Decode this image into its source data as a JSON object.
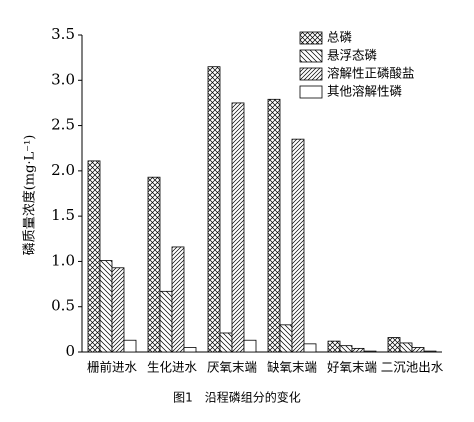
{
  "chart_data": {
    "type": "bar",
    "caption": "图1　沿程磷组分的变化",
    "y_label": "磷质量浓度(mg·L⁻¹)",
    "categories": [
      "栅前进水",
      "生化进水",
      "厌氧末端",
      "缺氧末端",
      "好氧末端",
      "二沉池出水"
    ],
    "series": [
      {
        "name": "总磷",
        "color": "#000000",
        "hatch": "cross",
        "values": [
          2.11,
          1.93,
          3.15,
          2.79,
          0.12,
          0.16
        ]
      },
      {
        "name": "悬浮态磷",
        "color": "#000000",
        "hatch": "backslash",
        "values": [
          1.01,
          0.67,
          0.21,
          0.3,
          0.07,
          0.1
        ]
      },
      {
        "name": "溶解性正磷酸盐",
        "color": "#000000",
        "hatch": "slash",
        "values": [
          0.93,
          1.16,
          2.75,
          2.35,
          0.04,
          0.05
        ]
      },
      {
        "name": "其他溶解性磷",
        "color": "#000000",
        "hatch": "none",
        "values": [
          0.13,
          0.05,
          0.13,
          0.09,
          0.01,
          0.01
        ]
      }
    ],
    "ylim": [
      0,
      3.5
    ],
    "yticks": [
      0,
      0.5,
      {
        "value": 1,
        "label": "1.0"
      },
      1.5,
      {
        "value": 2,
        "label": "2.0"
      },
      2.5,
      {
        "value": 3,
        "label": "3.0"
      },
      3.5
    ],
    "legend": "upper right",
    "grid": false
  }
}
